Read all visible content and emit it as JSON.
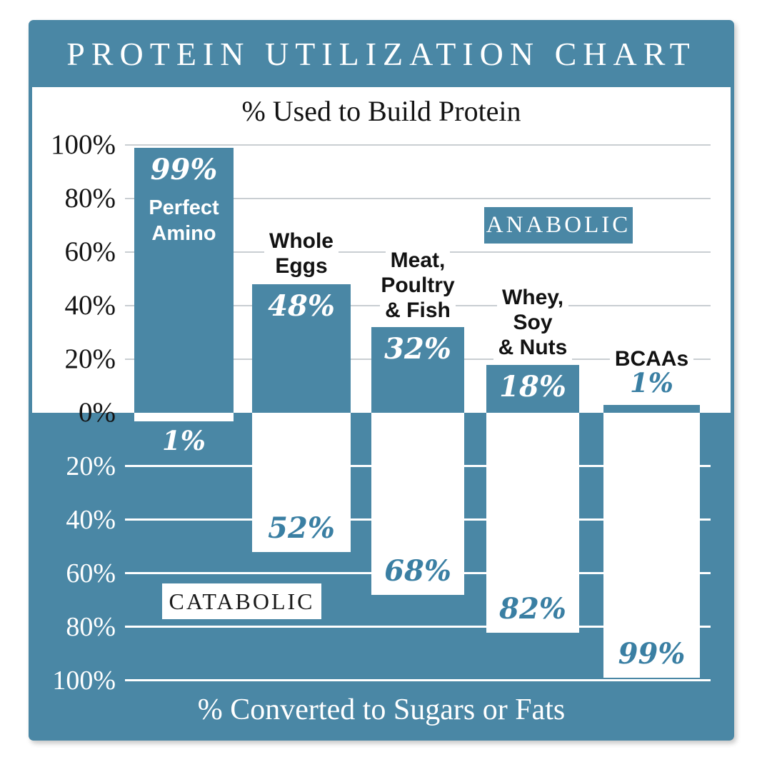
{
  "title": "PROTEIN UTILIZATION CHART",
  "chart_data": {
    "type": "bar",
    "title": "PROTEIN UTILIZATION CHART",
    "subtitle_top": "% Used to Build Protein",
    "subtitle_bottom": "% Converted to Sugars or Fats",
    "region_labels": {
      "upper": "ANABOLIC",
      "lower": "CATABOLIC"
    },
    "categories": [
      "Perfect Amino",
      "Whole Eggs",
      "Meat, Poultry & Fish",
      "Whey, Soy & Nuts",
      "BCAAs"
    ],
    "category_label_lines": [
      [
        "Perfect",
        "Amino"
      ],
      [
        "Whole",
        "Eggs"
      ],
      [
        "Meat,",
        "Poultry",
        "& Fish"
      ],
      [
        "Whey,",
        "Soy",
        "& Nuts"
      ],
      [
        "BCAAs"
      ]
    ],
    "series": [
      {
        "name": "Anabolic — % used to build protein",
        "values": [
          99,
          48,
          32,
          18,
          1
        ],
        "labels": [
          "99%",
          "48%",
          "32%",
          "18%",
          "1%"
        ]
      },
      {
        "name": "Catabolic — % converted to sugars or fats",
        "values": [
          1,
          52,
          68,
          82,
          99
        ],
        "labels": [
          "1%",
          "52%",
          "68%",
          "82%",
          "99%"
        ]
      }
    ],
    "y_axis": {
      "upper_ticks": [
        "100%",
        "80%",
        "60%",
        "40%",
        "20%",
        "0%"
      ],
      "lower_ticks": [
        "20%",
        "40%",
        "60%",
        "80%",
        "100%"
      ],
      "upper_range": [
        0,
        100
      ],
      "lower_range": [
        0,
        100
      ],
      "unit": "%"
    },
    "grid": true,
    "legend_position": "none",
    "colors": {
      "teal": "#4A87A5",
      "teal_text": "#3A7FA3",
      "white": "#FFFFFF",
      "black_text": "#141414",
      "grid_gray": "#C9CED2"
    }
  }
}
